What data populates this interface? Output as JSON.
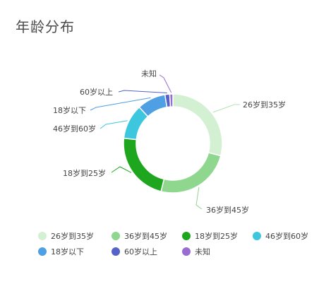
{
  "title": "年龄分布",
  "chart_data": {
    "type": "pie",
    "variant": "donut",
    "categories": [
      "26岁到35岁",
      "36岁到45岁",
      "18岁到25岁",
      "46岁到60岁",
      "18岁以下",
      "60岁以上",
      "未知"
    ],
    "values": [
      28,
      24,
      22,
      11,
      9,
      1.5,
      1
    ],
    "colors": [
      "#d3f0d3",
      "#8fd68f",
      "#1fa61f",
      "#3dc7df",
      "#4f9fe4",
      "#5563c8",
      "#9a6bd1"
    ],
    "legend_position": "bottom",
    "legend": [
      {
        "label": "26岁到35岁",
        "color": "#d3f0d3"
      },
      {
        "label": "36岁到45岁",
        "color": "#8fd68f"
      },
      {
        "label": "18岁到25岁",
        "color": "#1fa61f"
      },
      {
        "label": "46岁到60岁",
        "color": "#3dc7df"
      },
      {
        "label": "18岁以下",
        "color": "#4f9fe4"
      },
      {
        "label": "60岁以上",
        "color": "#5563c8"
      },
      {
        "label": "未知",
        "color": "#9a6bd1"
      }
    ]
  }
}
